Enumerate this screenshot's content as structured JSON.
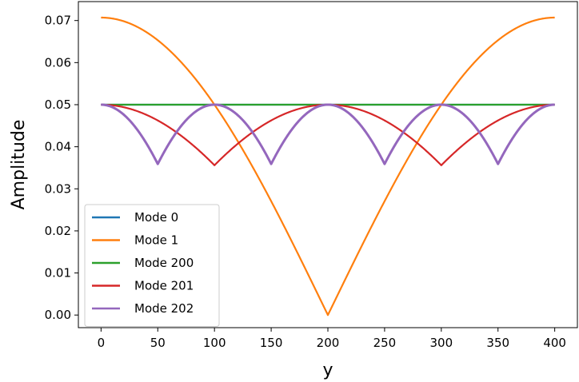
{
  "chart_data": {
    "type": "line",
    "title": "",
    "xlabel": "y",
    "ylabel": "Amplitude",
    "xlim": [
      -20,
      420
    ],
    "ylim": [
      -0.003,
      0.0745
    ],
    "xticks": [
      0,
      50,
      100,
      150,
      200,
      250,
      300,
      350,
      400
    ],
    "yticks": [
      0.0,
      0.01,
      0.02,
      0.03,
      0.04,
      0.05,
      0.06,
      0.07
    ],
    "ytick_labels": [
      "0.00",
      "0.01",
      "0.02",
      "0.03",
      "0.04",
      "0.05",
      "0.06",
      "0.07"
    ],
    "xtick_labels": [
      "0",
      "50",
      "100",
      "150",
      "200",
      "250",
      "300",
      "350",
      "400"
    ],
    "grid": false,
    "legend_position": "lower-left",
    "x_range": [
      0,
      400
    ],
    "series": [
      {
        "name": "Mode 0",
        "color": "#1f77b4",
        "formula": "constant",
        "values_at": {
          "0": 0.05,
          "400": 0.05
        }
      },
      {
        "name": "Mode 1",
        "color": "#ff7f0e",
        "formula": "|cos|",
        "values_at": {
          "0": 0.0707,
          "100": 0.05,
          "200": 0.0004,
          "300": 0.05,
          "400": 0.0707
        }
      },
      {
        "name": "Mode 200",
        "color": "#2ca02c",
        "formula": "constant",
        "values_at": {
          "0": 0.05,
          "400": 0.05
        }
      },
      {
        "name": "Mode 201",
        "color": "#d62728",
        "formula": "envelope",
        "values_at": {
          "0": 0.05,
          "100": 0.0356,
          "200": 0.05,
          "300": 0.0356,
          "400": 0.05
        }
      },
      {
        "name": "Mode 202",
        "color": "#9467bd",
        "formula": "envelope-oscillating",
        "values_at": {
          "0": 0.05,
          "50": 0.0359,
          "100": 0.05,
          "150": 0.0359,
          "200": 0.05,
          "250": 0.0359,
          "300": 0.05,
          "350": 0.0359,
          "400": 0.05
        }
      }
    ]
  }
}
